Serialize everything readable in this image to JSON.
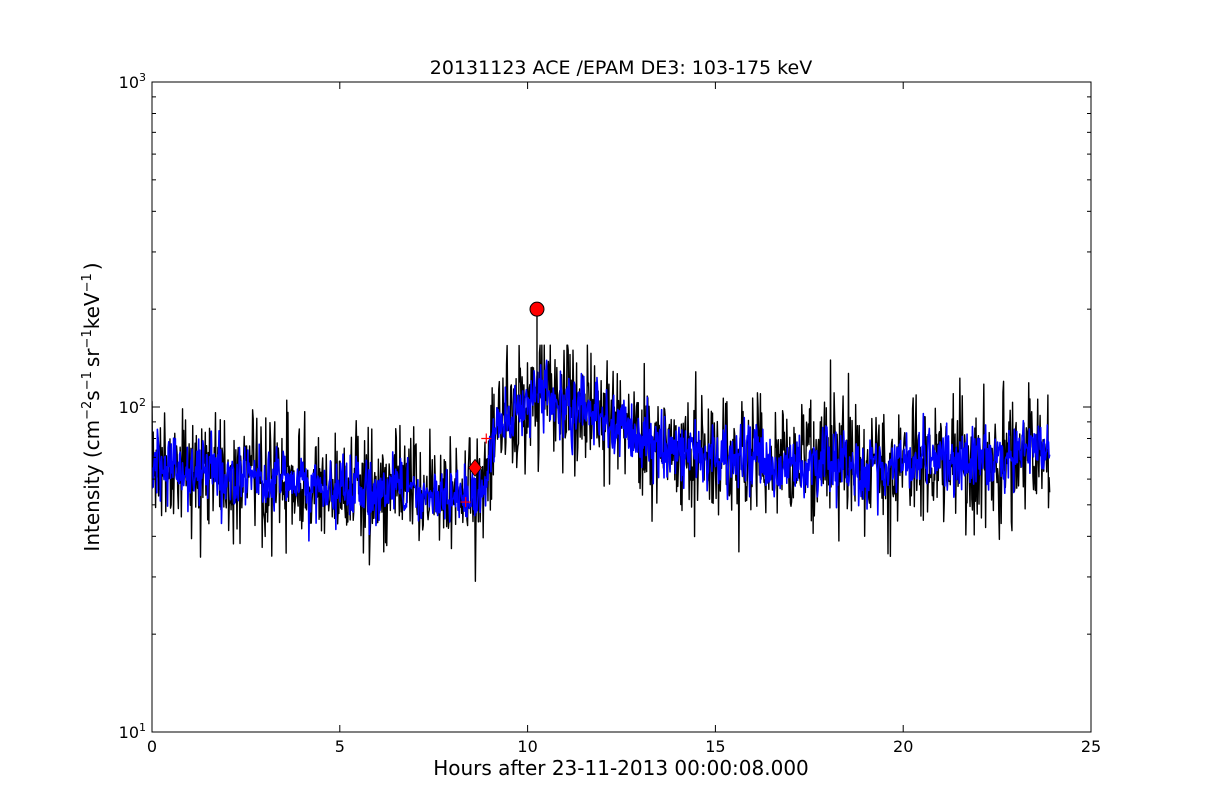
{
  "chart_data": {
    "type": "line",
    "title": "20131123 ACE /EPAM DE3: 103-175 keV",
    "xlabel": "Hours after 23-11-2013 00:00:08.000",
    "ylabel_parts": {
      "lead": "Intensity (cm",
      "e1": "−2",
      "s": "s",
      "e2": "−1",
      "sr": "sr",
      "e3": "−1",
      "kev": "keV",
      "e4": "−1",
      "close": ")"
    },
    "xlim": [
      0,
      25
    ],
    "ylim": [
      10,
      1000
    ],
    "yscale": "log",
    "xticks": [
      {
        "value": 0,
        "label": "0"
      },
      {
        "value": 5,
        "label": "5"
      },
      {
        "value": 10,
        "label": "10"
      },
      {
        "value": 15,
        "label": "15"
      },
      {
        "value": 20,
        "label": "20"
      },
      {
        "value": 25,
        "label": "25"
      }
    ],
    "yticks": [
      {
        "value": 10,
        "base": "10",
        "exp": "1"
      },
      {
        "value": 100,
        "base": "10",
        "exp": "2"
      },
      {
        "value": 1000,
        "base": "10",
        "exp": "3"
      }
    ],
    "grid": false,
    "series": [
      {
        "style": "raw",
        "color": "#000000",
        "x": [
          0.0,
          0.5,
          1.0,
          1.5,
          2.0,
          2.5,
          3.0,
          3.5,
          4.0,
          4.5,
          5.0,
          5.5,
          6.0,
          6.5,
          7.0,
          7.5,
          8.0,
          8.5,
          8.8,
          9.0,
          9.2,
          9.5,
          10.0,
          10.25,
          10.5,
          11.0,
          11.5,
          12.0,
          12.5,
          13.0,
          13.5,
          14.0,
          14.5,
          15.0,
          15.5,
          16.0,
          16.5,
          17.0,
          17.5,
          18.0,
          18.5,
          19.0,
          19.5,
          20.0,
          20.5,
          21.0,
          21.5,
          22.0,
          22.5,
          23.0,
          23.5,
          23.9
        ],
        "y": [
          68,
          65,
          62,
          66,
          60,
          62,
          58,
          62,
          57,
          56,
          54,
          56,
          55,
          57,
          54,
          56,
          53,
          52,
          54,
          70,
          90,
          92,
          100,
          115,
          105,
          102,
          100,
          95,
          88,
          80,
          78,
          74,
          72,
          70,
          68,
          70,
          68,
          66,
          67,
          68,
          66,
          64,
          66,
          68,
          67,
          70,
          68,
          66,
          68,
          72,
          74,
          74
        ],
        "noise_min": 16.5,
        "noise_max": 155
      },
      {
        "style": "smoothed",
        "color": "#0000ff",
        "x": [
          0.0,
          0.5,
          1.0,
          1.5,
          2.0,
          2.5,
          3.0,
          3.5,
          4.0,
          4.5,
          5.0,
          5.5,
          6.0,
          6.5,
          7.0,
          7.5,
          8.0,
          8.5,
          8.8,
          9.0,
          9.2,
          9.5,
          10.0,
          10.25,
          10.5,
          11.0,
          11.5,
          12.0,
          12.5,
          13.0,
          13.5,
          14.0,
          14.5,
          15.0,
          15.5,
          16.0,
          16.5,
          17.0,
          17.5,
          18.0,
          18.5,
          19.0,
          19.5,
          20.0,
          20.5,
          21.0,
          21.5,
          22.0,
          22.5,
          23.0,
          23.5,
          23.9
        ],
        "y": [
          68,
          65,
          62,
          66,
          60,
          62,
          58,
          62,
          57,
          56,
          54,
          56,
          55,
          57,
          54,
          56,
          53,
          52,
          54,
          70,
          90,
          92,
          100,
          115,
          105,
          102,
          100,
          95,
          88,
          80,
          78,
          74,
          72,
          70,
          68,
          70,
          68,
          66,
          67,
          68,
          66,
          64,
          66,
          68,
          67,
          70,
          68,
          66,
          68,
          72,
          74,
          74
        ]
      }
    ],
    "markers": [
      {
        "shape": "circle",
        "x": 10.25,
        "y": 200,
        "color": "#ff0000"
      },
      {
        "shape": "diamond",
        "x": 8.6,
        "y": 65,
        "color": "#ff0000"
      },
      {
        "shape": "plus",
        "x": 8.9,
        "y": 80,
        "color": "#ff0000"
      },
      {
        "shape": "plus",
        "x": 8.35,
        "y": 51,
        "color": "#ff0000"
      }
    ]
  }
}
